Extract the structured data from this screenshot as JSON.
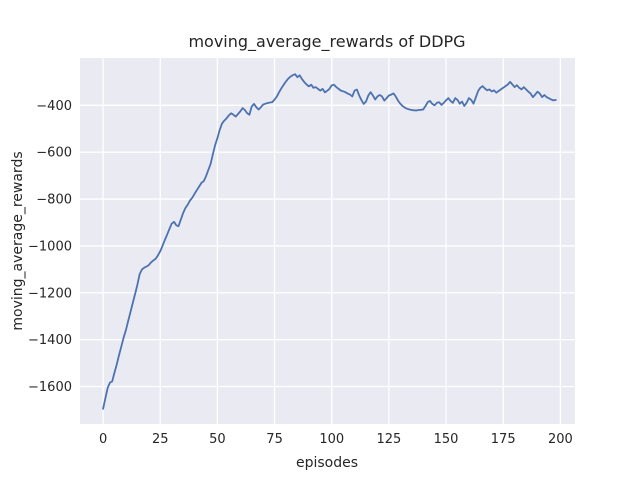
{
  "figure": {
    "title": "moving_average_rewards of DDPG",
    "xlabel": "episodes",
    "ylabel": "moving_average_rewards"
  },
  "chart_data": {
    "type": "line",
    "title": "moving_average_rewards of DDPG",
    "xlabel": "episodes",
    "ylabel": "moving_average_rewards",
    "xlim": [
      -10.1,
      206.4
    ],
    "ylim": [
      -1760,
      -198
    ],
    "grid": true,
    "legend_position": "none",
    "xticks": {
      "values": [
        0,
        25,
        50,
        75,
        100,
        125,
        150,
        175,
        200
      ],
      "labels": [
        "0",
        "25",
        "50",
        "75",
        "100",
        "125",
        "150",
        "175",
        "200"
      ]
    },
    "yticks": {
      "values": [
        -400,
        -600,
        -800,
        -1000,
        -1200,
        -1400,
        -1600
      ],
      "labels": [
        "−400",
        "−600",
        "−800",
        "−1000",
        "−1200",
        "−1400",
        "−1600"
      ]
    },
    "style": {
      "figure_background": "#ffffff",
      "axes_background": "#eaeaf2",
      "gridline_color": "#ffffff",
      "text_color": "#262626",
      "line_color": "#4c72b0"
    },
    "series": [
      {
        "name": "moving_average_rewards",
        "color": "#4c72b0",
        "x_start": 0,
        "x_step": 1,
        "values": [
          -1695,
          -1650,
          -1605,
          -1583,
          -1578,
          -1540,
          -1505,
          -1465,
          -1428,
          -1390,
          -1358,
          -1320,
          -1282,
          -1243,
          -1205,
          -1165,
          -1120,
          -1100,
          -1093,
          -1088,
          -1082,
          -1070,
          -1062,
          -1055,
          -1040,
          -1022,
          -1000,
          -975,
          -952,
          -928,
          -905,
          -897,
          -912,
          -916,
          -888,
          -860,
          -838,
          -824,
          -806,
          -794,
          -778,
          -762,
          -747,
          -731,
          -724,
          -703,
          -676,
          -650,
          -610,
          -570,
          -540,
          -505,
          -478,
          -465,
          -455,
          -443,
          -434,
          -440,
          -448,
          -437,
          -426,
          -412,
          -420,
          -433,
          -440,
          -405,
          -394,
          -408,
          -418,
          -408,
          -397,
          -393,
          -390,
          -388,
          -386,
          -375,
          -362,
          -344,
          -327,
          -312,
          -298,
          -286,
          -277,
          -271,
          -267,
          -280,
          -272,
          -288,
          -301,
          -311,
          -319,
          -312,
          -325,
          -322,
          -330,
          -337,
          -330,
          -345,
          -338,
          -330,
          -315,
          -312,
          -322,
          -330,
          -337,
          -340,
          -344,
          -350,
          -354,
          -362,
          -337,
          -333,
          -358,
          -378,
          -394,
          -384,
          -358,
          -344,
          -358,
          -375,
          -362,
          -356,
          -362,
          -380,
          -369,
          -358,
          -354,
          -349,
          -362,
          -380,
          -393,
          -403,
          -410,
          -415,
          -418,
          -420,
          -421,
          -422,
          -420,
          -419,
          -418,
          -403,
          -386,
          -381,
          -394,
          -400,
          -389,
          -387,
          -398,
          -389,
          -379,
          -369,
          -381,
          -389,
          -369,
          -377,
          -393,
          -384,
          -403,
          -389,
          -369,
          -377,
          -393,
          -366,
          -339,
          -325,
          -318,
          -328,
          -336,
          -332,
          -341,
          -336,
          -346,
          -339,
          -332,
          -325,
          -318,
          -311,
          -300,
          -311,
          -322,
          -314,
          -325,
          -332,
          -322,
          -332,
          -342,
          -350,
          -365,
          -354,
          -342,
          -350,
          -365,
          -356,
          -365,
          -370,
          -375,
          -379,
          -377
        ]
      }
    ]
  }
}
